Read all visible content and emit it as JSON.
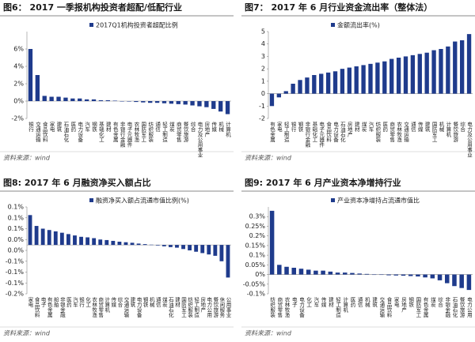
{
  "chart_data": [
    {
      "type": "bar",
      "title": "图6： 2017 一季报机构投资者超配/低配行业",
      "legend": "2017Q1机构投资者超配比例",
      "source": "资料来源：wind",
      "color": "#1f3b8c",
      "categories": [
        "银行",
        "交通运输",
        "食品饮料",
        "家电",
        "建筑",
        "石油石化",
        "医药",
        "电力设备",
        "汽车",
        "钢铁",
        "基础化工",
        "建材",
        "有色金属",
        "非银行金融",
        "电子元器件",
        "农林牧渔",
        "国防军工",
        "纺织服装",
        "通信",
        "轻工制造",
        "煤炭",
        "商贸零售",
        "餐饮旅游",
        "综合",
        "电力及公用事业",
        "房地产",
        "传媒",
        "机械",
        "计算机"
      ],
      "values": [
        6.0,
        3.0,
        0.6,
        0.5,
        0.5,
        0.4,
        0.3,
        0.3,
        0.2,
        0.2,
        0.1,
        0.1,
        0.05,
        0,
        -0.05,
        -0.1,
        -0.15,
        -0.2,
        -0.2,
        -0.25,
        -0.3,
        -0.35,
        -0.4,
        -0.5,
        -0.6,
        -0.7,
        -0.9,
        -1.2,
        -1.5
      ],
      "ylim": [
        -2,
        8
      ],
      "yticks": [
        {
          "value": 6,
          "label": "6%"
        },
        {
          "value": 4,
          "label": "4%"
        },
        {
          "value": 2,
          "label": "2%"
        },
        {
          "value": 0,
          "label": "0%"
        },
        {
          "value": -2,
          "label": "-2%"
        }
      ]
    },
    {
      "type": "bar",
      "title": "图7： 2017 年 6 月行业资金流出率（整体法）",
      "legend": "金额流出率(%)",
      "source": "资料来源：wind",
      "color": "#1f3b8c",
      "categories": [
        "有色金属",
        "家电",
        "轻工制造",
        "银行",
        "钢铁",
        "非银行金融",
        "基础化工",
        "电子元器件",
        "食品饮料",
        "电力设备",
        "石油石化",
        "房地产",
        "建材",
        "煤炭",
        "汽车",
        "纺织服装",
        "医药",
        "商贸零售",
        "农林牧渔",
        "交通运输",
        "通信",
        "传媒",
        "建筑",
        "国防军工",
        "机械",
        "计算机",
        "餐饮旅游",
        "综合",
        "电力及公用事业"
      ],
      "values": [
        -1.0,
        -0.3,
        0.2,
        0.8,
        1.1,
        1.3,
        1.5,
        1.6,
        1.7,
        1.8,
        2.0,
        2.1,
        2.2,
        2.3,
        2.4,
        2.5,
        2.6,
        2.8,
        2.9,
        3.0,
        3.1,
        3.2,
        3.3,
        3.5,
        3.6,
        3.8,
        4.2,
        4.3,
        4.8
      ],
      "ylim": [
        -2,
        5
      ],
      "yticks": [
        5,
        4,
        3,
        2,
        1,
        0,
        -1,
        -2
      ]
    },
    {
      "type": "bar",
      "title": "图8:  2017 年 6 月融资净买入额占比",
      "legend": "融资净买入额占流通市值比例(%)",
      "source": "资料来源：wind",
      "color": "#1f3b8c",
      "categories": [
        "家电",
        "食品饮料",
        "电子",
        "有色金属",
        "船舶",
        "非银金融",
        "医药",
        "汽车",
        "银行",
        "化工",
        "农林牧渔",
        "商贸零售",
        "计算机",
        "传媒",
        "综合",
        "交通运输",
        "建筑",
        "电力设备",
        "钢铁",
        "机械",
        "通信",
        "煤炭",
        "石油石化",
        "建材",
        "国防军工",
        "纺织服装",
        "轻工制造",
        "房地产",
        "电力公用",
        "餐饮旅游",
        "休闲服务",
        "公用事业"
      ],
      "values": [
        0.11,
        0.07,
        0.06,
        0.055,
        0.05,
        0.045,
        0.04,
        0.035,
        0.03,
        0.028,
        0.025,
        0.02,
        0.018,
        0.015,
        0.012,
        0.01,
        0.008,
        0.005,
        0.003,
        0.001,
        -0.002,
        -0.005,
        -0.008,
        -0.01,
        -0.015,
        -0.02,
        -0.025,
        -0.03,
        -0.035,
        -0.04,
        -0.06,
        -0.12
      ],
      "ylim": [
        -0.18,
        0.14
      ],
      "yticks": [
        {
          "value": 0.14,
          "label": "0.1%"
        },
        {
          "value": 0.1,
          "label": "0.1%"
        },
        {
          "value": 0.06,
          "label": "0.1%"
        },
        {
          "value": 0.02,
          "label": "0.0%"
        },
        {
          "value": -0.02,
          "label": "0.0%"
        },
        {
          "value": -0.06,
          "label": "-0.1%"
        },
        {
          "value": -0.1,
          "label": "-0.1%"
        },
        {
          "value": -0.14,
          "label": "-0.1%"
        },
        {
          "value": -0.18,
          "label": "-0.2%"
        }
      ]
    },
    {
      "type": "bar",
      "title": "图9:  2017 年 6 月产业资本净增持行业",
      "legend": "产业资本净增持占流通市值比",
      "source": "资料来源：wind",
      "color": "#1f3b8c",
      "categories": [
        "纺织服装",
        "商贸零售",
        "农林牧渔",
        "电子",
        "电力设备",
        "化工",
        "汽车",
        "传媒",
        "建材",
        "轻工制造",
        "计算机",
        "医药",
        "通信",
        "机械",
        "建筑",
        "交通运输",
        "食品饮料",
        "家电",
        "房地产",
        "钢铁",
        "国防军工",
        "有色金属",
        "煤炭",
        "综合",
        "非银金融",
        "石油石化",
        "餐饮旅游",
        "电力公用"
      ],
      "values": [
        0.33,
        0.05,
        0.04,
        0.035,
        0.03,
        0.025,
        0.02,
        0.02,
        0.015,
        0.01,
        0.01,
        0.008,
        0.005,
        0.003,
        0,
        -0.002,
        -0.004,
        -0.005,
        -0.006,
        -0.008,
        -0.01,
        -0.015,
        -0.02,
        -0.03,
        -0.045,
        -0.06,
        -0.07,
        -0.08
      ],
      "ylim": [
        -0.1,
        0.35
      ],
      "yticks": [
        {
          "value": 0.3,
          "label": "0.3%"
        },
        {
          "value": 0.25,
          "label": "0.25%"
        },
        {
          "value": 0.2,
          "label": "0.2%"
        },
        {
          "value": 0.15,
          "label": "0.15%"
        },
        {
          "value": 0.1,
          "label": "0.1%"
        },
        {
          "value": 0.05,
          "label": "0.05%"
        },
        {
          "value": 0,
          "label": "0%"
        },
        {
          "value": -0.05,
          "label": "-0.05%"
        },
        {
          "value": -0.1,
          "label": "-0.1%"
        }
      ]
    }
  ]
}
